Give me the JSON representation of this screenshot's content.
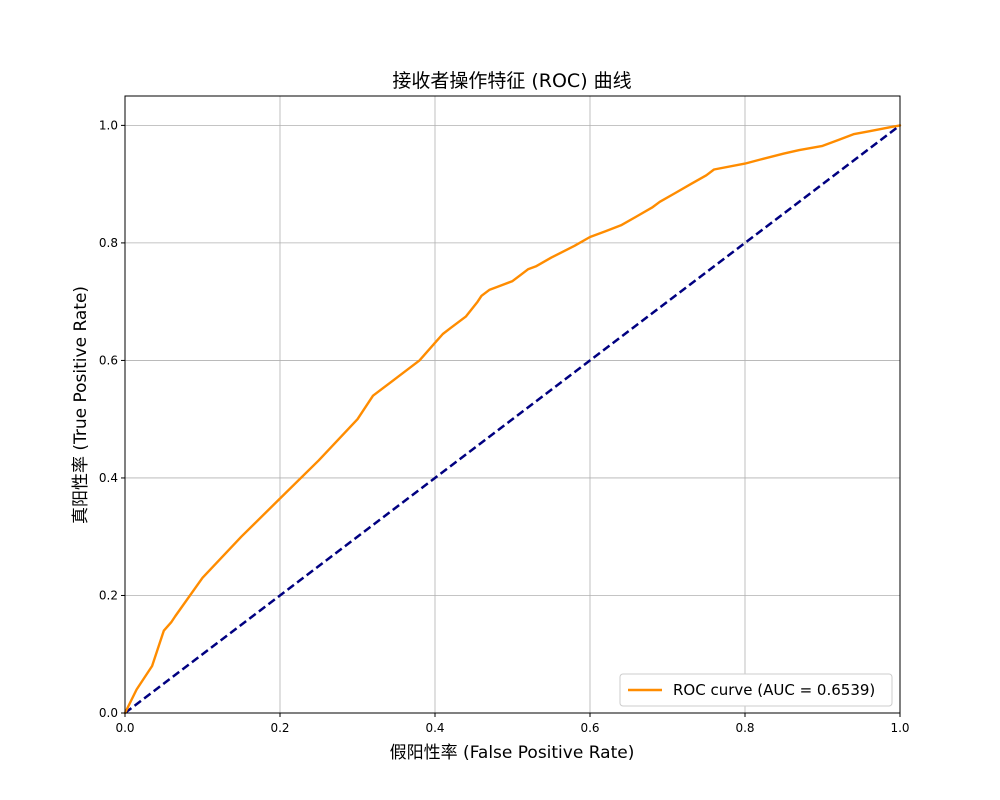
{
  "chart_data": {
    "type": "line",
    "title": "接收者操作特征 (ROC) 曲线",
    "xlabel": "假阳性率 (False Positive Rate)",
    "ylabel": "真阳性率 (True Positive Rate)",
    "xlim": [
      0.0,
      1.0
    ],
    "ylim": [
      0.0,
      1.05
    ],
    "xticks": [
      "0.0",
      "0.2",
      "0.4",
      "0.6",
      "0.8",
      "1.0"
    ],
    "yticks": [
      "0.0",
      "0.2",
      "0.4",
      "0.6",
      "0.8",
      "1.0"
    ],
    "grid": true,
    "legend_position": "lower-right",
    "series": [
      {
        "name": "ROC curve (AUC = 0.6539)",
        "color": "#ff8c00",
        "style": "solid",
        "x": [
          0.0,
          0.015,
          0.035,
          0.05,
          0.06,
          0.065,
          0.1,
          0.15,
          0.2,
          0.25,
          0.3,
          0.32,
          0.35,
          0.38,
          0.39,
          0.4,
          0.41,
          0.42,
          0.44,
          0.455,
          0.46,
          0.47,
          0.48,
          0.5,
          0.51,
          0.52,
          0.53,
          0.55,
          0.58,
          0.6,
          0.62,
          0.64,
          0.66,
          0.68,
          0.69,
          0.71,
          0.73,
          0.75,
          0.76,
          0.8,
          0.82,
          0.85,
          0.87,
          0.9,
          0.92,
          0.94,
          0.96,
          0.98,
          1.0
        ],
        "y": [
          0.0,
          0.04,
          0.08,
          0.14,
          0.155,
          0.165,
          0.23,
          0.3,
          0.365,
          0.43,
          0.5,
          0.54,
          0.57,
          0.6,
          0.615,
          0.63,
          0.645,
          0.655,
          0.675,
          0.7,
          0.71,
          0.72,
          0.725,
          0.735,
          0.745,
          0.755,
          0.76,
          0.775,
          0.795,
          0.81,
          0.82,
          0.83,
          0.845,
          0.86,
          0.87,
          0.885,
          0.9,
          0.915,
          0.925,
          0.935,
          0.942,
          0.952,
          0.958,
          0.965,
          0.975,
          0.985,
          0.99,
          0.995,
          1.0
        ]
      },
      {
        "name": "",
        "color": "#000080",
        "style": "dashed",
        "x": [
          0.0,
          1.0
        ],
        "y": [
          0.0,
          1.0
        ]
      }
    ]
  }
}
